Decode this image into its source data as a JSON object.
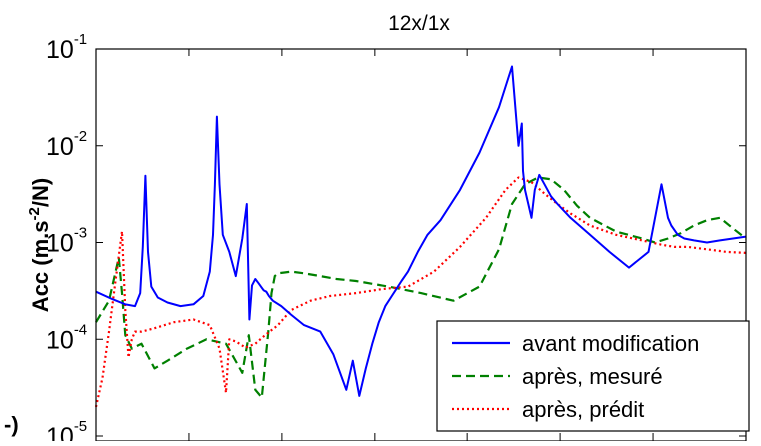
{
  "chart_data": {
    "type": "line",
    "title": "12x/1x",
    "xlabel": "",
    "ylabel": "Acc (m.s",
    "ylabel_superscript": "-2",
    "ylabel_suffix": "/N)",
    "yscale": "log",
    "ylim": [
      1e-05,
      0.1
    ],
    "xlim": [
      0,
      1
    ],
    "grid": false,
    "legend_position": "bottom-right",
    "y_ticks": [
      {
        "value": 0.1,
        "base": "10",
        "exp": "-1"
      },
      {
        "value": 0.01,
        "base": "10",
        "exp": "-2"
      },
      {
        "value": 0.001,
        "base": "10",
        "exp": "-3"
      },
      {
        "value": 0.0001,
        "base": "10",
        "exp": "-4"
      },
      {
        "value": 1e-05,
        "base": "10",
        "exp": "-5"
      }
    ],
    "x_ticks": [
      0.0,
      0.143,
      0.286,
      0.429,
      0.571,
      0.714,
      0.857,
      1.0
    ],
    "series": [
      {
        "name": "avant modification",
        "color": "#0000ff",
        "dash": "solid",
        "x": [
          0.0,
          0.025,
          0.045,
          0.06,
          0.068,
          0.072,
          0.076,
          0.08,
          0.085,
          0.095,
          0.11,
          0.13,
          0.15,
          0.165,
          0.175,
          0.18,
          0.183,
          0.186,
          0.19,
          0.195,
          0.205,
          0.215,
          0.225,
          0.232,
          0.236,
          0.24,
          0.245,
          0.25,
          0.255,
          0.258,
          0.262,
          0.266,
          0.272,
          0.285,
          0.3,
          0.32,
          0.345,
          0.365,
          0.385,
          0.395,
          0.405,
          0.415,
          0.425,
          0.435,
          0.445,
          0.455,
          0.462,
          0.47,
          0.48,
          0.495,
          0.51,
          0.53,
          0.56,
          0.59,
          0.62,
          0.64,
          0.65,
          0.655,
          0.657,
          0.66,
          0.665,
          0.67,
          0.675,
          0.682,
          0.69,
          0.7,
          0.71,
          0.73,
          0.76,
          0.79,
          0.82,
          0.85,
          0.87,
          0.88,
          0.885,
          0.895,
          0.905,
          0.92,
          0.94,
          0.96,
          0.98,
          1.0
        ],
        "y": [
          0.00031,
          0.00026,
          0.00023,
          0.00022,
          0.0003,
          0.0009,
          0.0049,
          0.0008,
          0.00035,
          0.00027,
          0.00024,
          0.00022,
          0.00023,
          0.00028,
          0.0005,
          0.0012,
          0.004,
          0.02,
          0.004,
          0.0012,
          0.0008,
          0.00045,
          0.0011,
          0.0025,
          0.00016,
          0.00036,
          0.00042,
          0.00038,
          0.00034,
          0.00032,
          0.00031,
          0.00028,
          0.00025,
          0.00022,
          0.00018,
          0.00014,
          0.00012,
          7e-05,
          3e-05,
          6e-05,
          2.6e-05,
          5e-05,
          9e-05,
          0.00015,
          0.00022,
          0.00028,
          0.00033,
          0.0004,
          0.0005,
          0.0008,
          0.0012,
          0.0017,
          0.0035,
          0.0085,
          0.025,
          0.066,
          0.01,
          0.017,
          0.0055,
          0.0035,
          0.0025,
          0.0018,
          0.0035,
          0.005,
          0.004,
          0.003,
          0.0025,
          0.0018,
          0.0012,
          0.0008,
          0.00055,
          0.0008,
          0.004,
          0.0018,
          0.0015,
          0.0012,
          0.0011,
          0.00105,
          0.001,
          0.00105,
          0.0011,
          0.00115
        ]
      },
      {
        "name": "après, mesuré",
        "color": "#008000",
        "dash": "dashed",
        "x": [
          0.0,
          0.02,
          0.035,
          0.04,
          0.045,
          0.055,
          0.07,
          0.09,
          0.11,
          0.14,
          0.17,
          0.2,
          0.225,
          0.235,
          0.245,
          0.255,
          0.265,
          0.27,
          0.275,
          0.28,
          0.29,
          0.3,
          0.32,
          0.345,
          0.37,
          0.4,
          0.45,
          0.5,
          0.55,
          0.59,
          0.62,
          0.64,
          0.66,
          0.68,
          0.7,
          0.72,
          0.74,
          0.76,
          0.8,
          0.84,
          0.86,
          0.88,
          0.9,
          0.92,
          0.94,
          0.96,
          0.98,
          1.0
        ],
        "y": [
          0.00015,
          0.00025,
          0.0007,
          0.0003,
          0.00011,
          8e-05,
          9e-05,
          5e-05,
          6e-05,
          8e-05,
          0.0001,
          9e-05,
          4.5e-05,
          0.00011,
          3e-05,
          2.5e-05,
          0.00012,
          0.0003,
          0.00045,
          0.00048,
          0.00049,
          0.0005,
          0.00048,
          0.00045,
          0.00042,
          0.0004,
          0.00035,
          0.0003,
          0.00025,
          0.00035,
          0.00085,
          0.0025,
          0.004,
          0.0047,
          0.0045,
          0.0035,
          0.0024,
          0.0018,
          0.0013,
          0.0011,
          0.001,
          0.0011,
          0.00125,
          0.0015,
          0.0017,
          0.0018,
          0.0014,
          0.0011
        ]
      },
      {
        "name": "après, prédit",
        "color": "#ff0000",
        "dash": "dotted",
        "x": [
          0.0,
          0.01,
          0.02,
          0.03,
          0.04,
          0.045,
          0.05,
          0.055,
          0.06,
          0.07,
          0.09,
          0.12,
          0.15,
          0.175,
          0.19,
          0.2,
          0.205,
          0.215,
          0.23,
          0.245,
          0.26,
          0.28,
          0.3,
          0.33,
          0.36,
          0.4,
          0.44,
          0.48,
          0.52,
          0.56,
          0.6,
          0.63,
          0.65,
          0.67,
          0.69,
          0.71,
          0.73,
          0.76,
          0.8,
          0.84,
          0.87,
          0.89,
          0.91,
          0.94,
          0.97,
          1.0
        ],
        "y": [
          2e-05,
          4e-05,
          0.00012,
          0.0004,
          0.0013,
          0.0002,
          6.5e-05,
          0.0001,
          0.00012,
          0.00012,
          0.00013,
          0.00015,
          0.00016,
          0.00014,
          8e-05,
          2.8e-05,
          0.0001,
          9.5e-05,
          8.2e-05,
          9e-05,
          0.00011,
          0.00014,
          0.0002,
          0.00025,
          0.00028,
          0.0003,
          0.00033,
          0.00035,
          0.0005,
          0.0009,
          0.0018,
          0.0035,
          0.0047,
          0.0042,
          0.0032,
          0.0025,
          0.002,
          0.0015,
          0.0012,
          0.00105,
          0.00095,
          0.0009,
          0.0009,
          0.00085,
          0.0008,
          0.00078
        ]
      }
    ]
  }
}
